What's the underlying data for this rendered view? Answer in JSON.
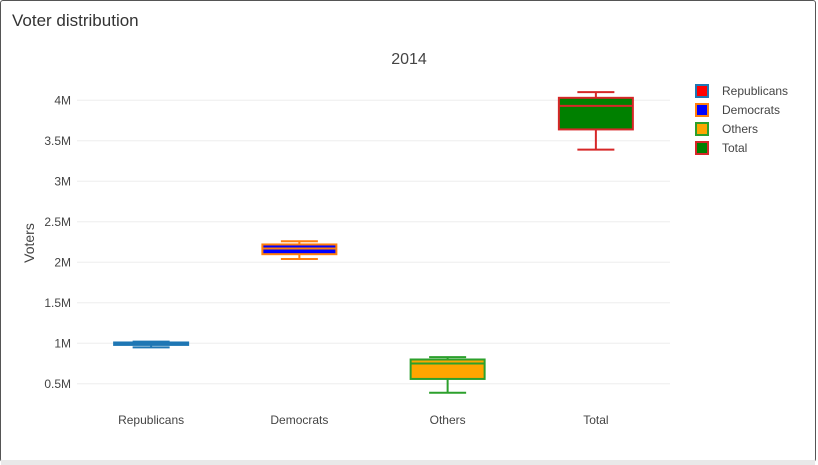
{
  "panel": {
    "title": "Voter distribution"
  },
  "chart_data": {
    "type": "box",
    "title": "2014",
    "xlabel": "",
    "ylabel": "Voters",
    "ylim": [
      0.3,
      4.25
    ],
    "yticks": [
      {
        "value": 0.5,
        "label": "0.5M"
      },
      {
        "value": 1,
        "label": "1M"
      },
      {
        "value": 1.5,
        "label": "1.5M"
      },
      {
        "value": 2,
        "label": "2M"
      },
      {
        "value": 2.5,
        "label": "2.5M"
      },
      {
        "value": 3,
        "label": "3M"
      },
      {
        "value": 3.5,
        "label": "3.5M"
      },
      {
        "value": 4,
        "label": "4M"
      }
    ],
    "grid": true,
    "legend_position": "top-right",
    "categories": [
      "Republicans",
      "Democrats",
      "Others",
      "Total"
    ],
    "series": [
      {
        "name": "Republicans",
        "min": 0.95,
        "q1": 0.98,
        "median": 1.0,
        "q3": 1.01,
        "max": 1.02,
        "fill": "#1f77b4",
        "line": "#1f77b4",
        "legend_fill": "#ff0000",
        "legend_line": "#1f77b4"
      },
      {
        "name": "Democrats",
        "min": 2.04,
        "q1": 2.1,
        "median": 2.17,
        "q3": 2.22,
        "max": 2.26,
        "fill": "#0000ff",
        "line": "#ff7f0e",
        "legend_fill": "#0000ff",
        "legend_line": "#ff7f0e"
      },
      {
        "name": "Others",
        "min": 0.39,
        "q1": 0.56,
        "median": 0.75,
        "q3": 0.8,
        "max": 0.83,
        "fill": "#ffa500",
        "line": "#2ca02c",
        "legend_fill": "#ffa500",
        "legend_line": "#2ca02c"
      },
      {
        "name": "Total",
        "min": 3.39,
        "q1": 3.64,
        "median": 3.93,
        "q3": 4.03,
        "max": 4.1,
        "fill": "#008000",
        "line": "#d62728",
        "legend_fill": "#008000",
        "legend_line": "#d62728"
      }
    ]
  }
}
